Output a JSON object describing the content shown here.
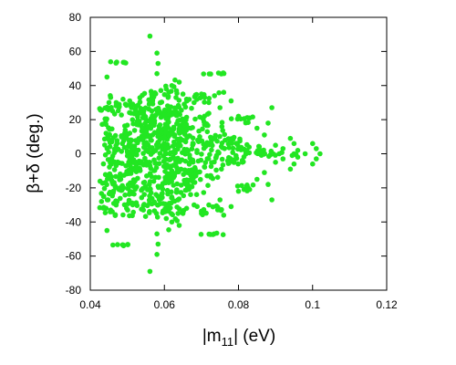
{
  "chart_data": {
    "type": "scatter",
    "xlabel_main": "|m",
    "xlabel_sub": "11",
    "xlabel_tail": "| (eV)",
    "ylabel": "β+δ (deg.)",
    "xlim": [
      0.04,
      0.12
    ],
    "ylim": [
      -80,
      80
    ],
    "x_ticks": [
      "0.04",
      "0.06",
      "0.08",
      "0.1",
      "0.12"
    ],
    "x_tick_values": [
      0.04,
      0.06,
      0.08,
      0.1,
      0.12
    ],
    "y_ticks": [
      "-80",
      "-60",
      "-40",
      "-20",
      "0",
      "20",
      "40",
      "60",
      "80"
    ],
    "y_tick_values": [
      -80,
      -60,
      -40,
      -20,
      0,
      20,
      40,
      60,
      80
    ],
    "grid": false,
    "marker_color": "#22e622",
    "series": [
      {
        "points": [
          [
            0.0561,
            69
          ],
          [
            0.0561,
            -69
          ],
          [
            0.058,
            59
          ],
          [
            0.058,
            -59
          ],
          [
            0.0583,
            53
          ],
          [
            0.0583,
            -53
          ],
          [
            0.058,
            47
          ],
          [
            0.058,
            -47
          ],
          [
            0.0445,
            45
          ],
          [
            0.0445,
            -45
          ],
          [
            0.0455,
            33
          ],
          [
            0.0455,
            -33
          ],
          [
            0.047,
            30
          ],
          [
            0.047,
            -30
          ],
          [
            0.0605,
            38
          ],
          [
            0.0605,
            -38
          ],
          [
            0.061,
            33
          ],
          [
            0.061,
            -33
          ],
          [
            0.062,
            40
          ],
          [
            0.062,
            -40
          ],
          [
            0.064,
            42
          ],
          [
            0.064,
            -42
          ],
          [
            0.065,
            35
          ],
          [
            0.065,
            -35
          ],
          [
            0.066,
            32
          ],
          [
            0.066,
            -32
          ],
          [
            0.068,
            30
          ],
          [
            0.068,
            -30
          ],
          [
            0.07,
            35
          ],
          [
            0.07,
            -35
          ],
          [
            0.072,
            30
          ],
          [
            0.072,
            -30
          ],
          [
            0.075,
            27
          ],
          [
            0.075,
            -27
          ],
          [
            0.076,
            36
          ],
          [
            0.076,
            -36
          ],
          [
            0.078,
            31
          ],
          [
            0.078,
            -31
          ],
          [
            0.08,
            22
          ],
          [
            0.08,
            -22
          ],
          [
            0.083,
            21
          ],
          [
            0.083,
            -21
          ],
          [
            0.085,
            15
          ],
          [
            0.085,
            -15
          ],
          [
            0.087,
            11
          ],
          [
            0.087,
            -11
          ],
          [
            0.089,
            27
          ],
          [
            0.089,
            -27
          ],
          [
            0.088,
            18
          ],
          [
            0.088,
            -18
          ],
          [
            0.09,
            5
          ],
          [
            0.09,
            -5
          ],
          [
            0.092,
            3
          ],
          [
            0.092,
            -3
          ],
          [
            0.094,
            9
          ],
          [
            0.094,
            -9
          ],
          [
            0.095,
            0
          ],
          [
            0.096,
            2
          ],
          [
            0.096,
            -2
          ],
          [
            0.098,
            0
          ],
          [
            0.1,
            6
          ],
          [
            0.1,
            -6
          ],
          [
            0.101,
            3
          ],
          [
            0.101,
            -3
          ],
          [
            0.102,
            0
          ],
          [
            0.095,
            6
          ],
          [
            0.095,
            -6
          ]
        ],
        "clusters": [
          {
            "x": [
              0.0455,
              0.0505
            ],
            "y": [
              53,
              54
            ]
          },
          {
            "x": [
              0.0455,
              0.0505
            ],
            "y": [
              -54,
              -53
            ]
          },
          {
            "x": [
              0.0695,
              0.0765
            ],
            "y": [
              46.5,
              47.5
            ]
          },
          {
            "x": [
              0.0695,
              0.0765
            ],
            "y": [
              -47.5,
              -46.5
            ]
          },
          {
            "x": [
              0.0425,
              0.056
            ],
            "y": [
              -32,
              32
            ]
          },
          {
            "x": [
              0.043,
              0.062
            ],
            "y": [
              -38,
              38
            ]
          },
          {
            "x": [
              0.044,
              0.06
            ],
            "y": [
              -30,
              30
            ]
          },
          {
            "x": [
              0.05,
              0.066
            ],
            "y": [
              -36,
              36
            ]
          },
          {
            "x": [
              0.056,
              0.068
            ],
            "y": [
              -28,
              28
            ]
          },
          {
            "x": [
              0.06,
              0.072
            ],
            "y": [
              -24,
              24
            ]
          },
          {
            "x": [
              0.065,
              0.076
            ],
            "y": [
              -20,
              20
            ]
          },
          {
            "x": [
              0.07,
              0.079
            ],
            "y": [
              -14,
              14
            ]
          },
          {
            "x": [
              0.074,
              0.083
            ],
            "y": [
              -9,
              9
            ]
          },
          {
            "x": [
              0.077,
              0.087
            ],
            "y": [
              -5,
              5
            ]
          },
          {
            "x": [
              0.08,
              0.09
            ],
            "y": [
              -2,
              2
            ]
          },
          {
            "x": [
              0.085,
              0.096
            ],
            "y": [
              -1,
              1
            ]
          },
          {
            "x": [
              0.06,
              0.064
            ],
            "y": [
              -45,
              45
            ]
          },
          {
            "x": [
              0.066,
              0.076
            ],
            "y": [
              30,
              36
            ]
          },
          {
            "x": [
              0.066,
              0.076
            ],
            "y": [
              -36,
              -30
            ]
          },
          {
            "x": [
              0.078,
              0.084
            ],
            "y": [
              18,
              22
            ]
          },
          {
            "x": [
              0.078,
              0.084
            ],
            "y": [
              -22,
              -18
            ]
          }
        ]
      }
    ]
  }
}
